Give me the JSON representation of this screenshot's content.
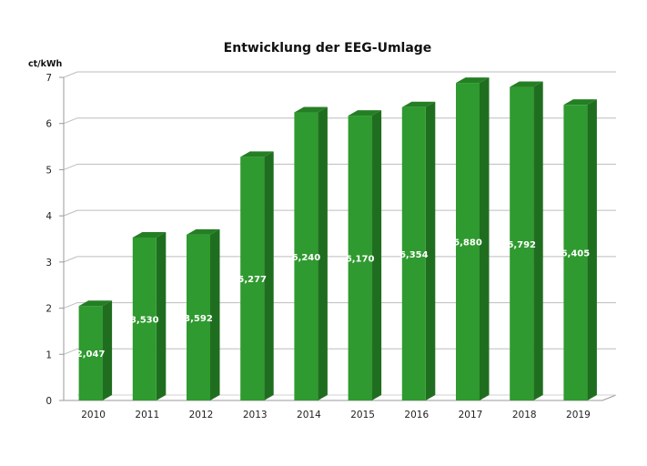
{
  "chart_data": {
    "type": "bar",
    "title": "Entwicklung der EEG-Umlage",
    "ylabel": "ct/kWh",
    "xlabel": "",
    "categories": [
      "2010",
      "2011",
      "2012",
      "2013",
      "2014",
      "2015",
      "2016",
      "2017",
      "2018",
      "2019"
    ],
    "values": [
      2.047,
      3.53,
      3.592,
      5.277,
      6.24,
      6.17,
      6.354,
      6.88,
      6.792,
      6.405
    ],
    "data_labels": [
      "2,047",
      "3,530",
      "3,592",
      "5,277",
      "6,240",
      "6,170",
      "6,354",
      "6,880",
      "6,792",
      "6,405"
    ],
    "yticks": [
      "0",
      "1",
      "2",
      "3",
      "4",
      "5",
      "6",
      "7"
    ],
    "ylim": [
      0,
      7
    ],
    "grid": true,
    "legend": "none",
    "colors": {
      "bar_front": "#2f9a2f",
      "bar_side": "#1f6e1f",
      "bar_top": "#247f24",
      "grid": "#bdbdbd"
    }
  }
}
